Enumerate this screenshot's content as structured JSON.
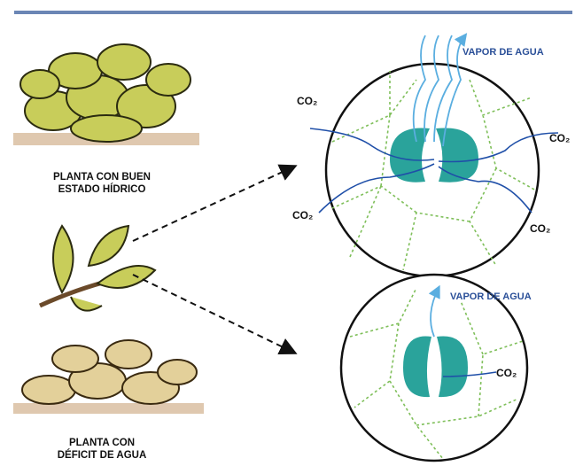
{
  "labels": {
    "healthy": [
      "PLANTA CON BUEN",
      "ESTADO HÍDRICO"
    ],
    "deficit": [
      "PLANTA CON",
      "DÉFICIT DE AGUA"
    ]
  },
  "open_stoma": {
    "vapor": "VAPOR DE AGUA",
    "co2": [
      "CO₂",
      "CO₂",
      "CO₂",
      "CO₂"
    ]
  },
  "closed_stoma": {
    "vapor": "VAPOR DE AGUA",
    "co2": "CO₂"
  }
}
